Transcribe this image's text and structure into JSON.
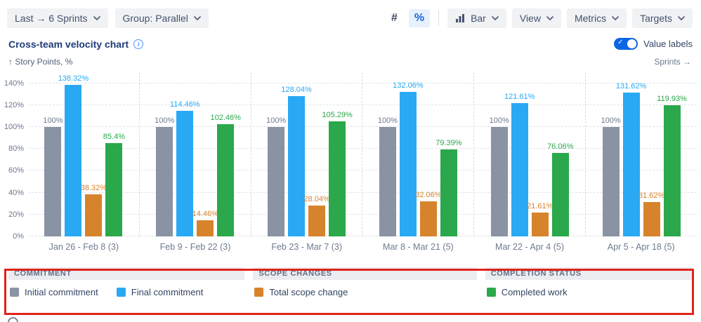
{
  "toolbar": {
    "sprint_range": "Last → 6 Sprints",
    "group_mode": "Group: Parallel",
    "number_mode": "#",
    "percent_mode": "%",
    "chart_type": "Bar",
    "view": "View",
    "metrics": "Metrics",
    "targets": "Targets"
  },
  "header": {
    "title": "Cross-team velocity chart",
    "value_labels": "Value labels"
  },
  "axes": {
    "y_axis_title": "↑ Story Points, %",
    "x_axis_title": "Sprints →"
  },
  "chart_data": {
    "type": "bar",
    "title": "Cross-team velocity chart",
    "ylabel": "Story Points, %",
    "xlabel": "Sprints",
    "ylim": [
      0,
      150
    ],
    "yticks": [
      "140%",
      "120%",
      "100%",
      "80%",
      "60%",
      "40%",
      "20%",
      "0%"
    ],
    "grid": "dashed horizontal gridlines, dashed vertical separators between sprint groups",
    "legend_position": "bottom",
    "categories": [
      "Jan 26 - Feb 8 (3)",
      "Feb 9 - Feb 22 (3)",
      "Feb 23 - Mar 7 (3)",
      "Mar 8 - Mar 21 (5)",
      "Mar 22 - Apr 4 (5)",
      "Apr 5 - Apr 18 (5)"
    ],
    "series": [
      {
        "name": "Initial commitment",
        "color": "#8993a4",
        "label_color": "#6b778c",
        "values": [
          100,
          100,
          100,
          100,
          100,
          100
        ]
      },
      {
        "name": "Final commitment",
        "color": "#29a9f3",
        "label_color": "#29a9f3",
        "values": [
          138.32,
          114.46,
          128.04,
          132.06,
          121.61,
          131.62
        ]
      },
      {
        "name": "Total scope change",
        "color": "#d7832c",
        "label_color": "#d7832c",
        "values": [
          38.32,
          14.46,
          28.04,
          32.06,
          21.61,
          31.62
        ]
      },
      {
        "name": "Completed work",
        "color": "#2aa84b",
        "label_color": "#2aa84b",
        "values": [
          85.4,
          102.46,
          105.29,
          79.39,
          76.06,
          119.93
        ]
      }
    ]
  },
  "legend": {
    "groups": [
      {
        "title": "COMMITMENT",
        "items": [
          {
            "label": "Initial commitment",
            "color": "#8993a4"
          },
          {
            "label": "Final commitment",
            "color": "#29a9f3"
          }
        ]
      },
      {
        "title": "SCOPE CHANGES",
        "items": [
          {
            "label": "Total scope change",
            "color": "#d7832c"
          }
        ]
      },
      {
        "title": "COMPLETION STATUS",
        "items": [
          {
            "label": "Completed work",
            "color": "#2aa84b"
          }
        ]
      }
    ]
  },
  "annotation": {
    "highlight_box_color": "#e2231a"
  },
  "colors": {
    "accent": "#1868db",
    "toggle_on": "#0c66e4",
    "title_text": "#1f3c78"
  }
}
